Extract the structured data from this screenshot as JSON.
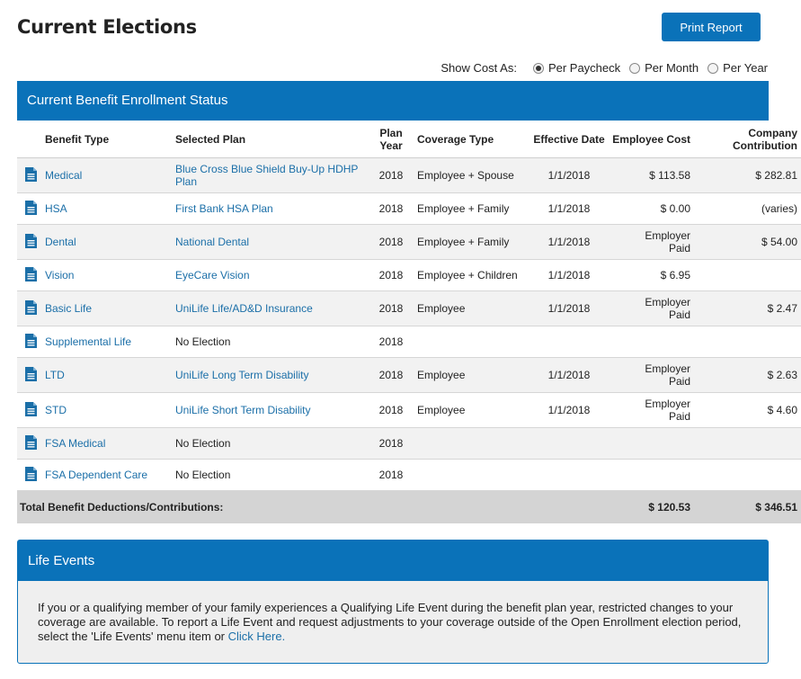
{
  "header": {
    "title": "Current Elections",
    "print_label": "Print Report",
    "show_cost_label": "Show Cost As:",
    "cost_options": [
      {
        "label": "Per Paycheck",
        "selected": true
      },
      {
        "label": "Per Month",
        "selected": false
      },
      {
        "label": "Per Year",
        "selected": false
      }
    ]
  },
  "status_panel": {
    "title": "Current Benefit Enrollment Status",
    "columns": {
      "benefit_type": "Benefit Type",
      "selected_plan": "Selected Plan",
      "plan_year": "Plan Year",
      "coverage_type": "Coverage Type",
      "effective_date": "Effective Date",
      "employee_cost": "Employee Cost",
      "company_contribution": "Company Contribution"
    },
    "rows": [
      {
        "benefit": "Medical",
        "plan": "Blue Cross Blue Shield Buy-Up HDHP Plan",
        "plan_link": true,
        "year": "2018",
        "coverage": "Employee + Spouse",
        "effective": "1/1/2018",
        "employee_cost": "$ 113.58",
        "company": "$ 282.81"
      },
      {
        "benefit": "HSA",
        "plan": "First Bank HSA Plan",
        "plan_link": true,
        "year": "2018",
        "coverage": "Employee + Family",
        "effective": "1/1/2018",
        "employee_cost": "$ 0.00",
        "company": "(varies)"
      },
      {
        "benefit": "Dental",
        "plan": "National Dental",
        "plan_link": true,
        "year": "2018",
        "coverage": "Employee + Family",
        "effective": "1/1/2018",
        "employee_cost": "Employer Paid",
        "company": "$ 54.00"
      },
      {
        "benefit": "Vision",
        "plan": "EyeCare Vision",
        "plan_link": true,
        "year": "2018",
        "coverage": "Employee + Children",
        "effective": "1/1/2018",
        "employee_cost": "$ 6.95",
        "company": ""
      },
      {
        "benefit": "Basic Life",
        "plan": "UniLife Life/AD&D Insurance",
        "plan_link": true,
        "year": "2018",
        "coverage": "Employee",
        "effective": "1/1/2018",
        "employee_cost": "Employer Paid",
        "company": "$ 2.47"
      },
      {
        "benefit": "Supplemental Life",
        "plan": "No Election",
        "plan_link": false,
        "year": "2018",
        "coverage": "",
        "effective": "",
        "employee_cost": "",
        "company": ""
      },
      {
        "benefit": "LTD",
        "plan": "UniLife Long Term Disability",
        "plan_link": true,
        "year": "2018",
        "coverage": "Employee",
        "effective": "1/1/2018",
        "employee_cost": "Employer Paid",
        "company": "$ 2.63"
      },
      {
        "benefit": "STD",
        "plan": "UniLife Short Term Disability",
        "plan_link": true,
        "year": "2018",
        "coverage": "Employee",
        "effective": "1/1/2018",
        "employee_cost": "Employer Paid",
        "company": "$ 4.60"
      },
      {
        "benefit": "FSA Medical",
        "plan": "No Election",
        "plan_link": false,
        "year": "2018",
        "coverage": "",
        "effective": "",
        "employee_cost": "",
        "company": ""
      },
      {
        "benefit": "FSA Dependent Care",
        "plan": "No Election",
        "plan_link": false,
        "year": "2018",
        "coverage": "",
        "effective": "",
        "employee_cost": "",
        "company": ""
      }
    ],
    "total": {
      "label": "Total Benefit Deductions/Contributions:",
      "employee_cost": "$ 120.53",
      "company": "$ 346.51"
    }
  },
  "life_events": {
    "title": "Life Events",
    "body": "If you or a qualifying member of your family experiences a Qualifying Life Event during the benefit plan year, restricted changes to your coverage are available. To report a Life Event and request adjustments to your coverage outside of the Open Enrollment election period, select the 'Life Events' menu item or ",
    "link_label": "Click Here."
  },
  "colors": {
    "brand_blue": "#0a72b9",
    "link_blue": "#1b6fa8",
    "row_alt": "#f2f2f2",
    "total_row": "#d4d4d4"
  }
}
